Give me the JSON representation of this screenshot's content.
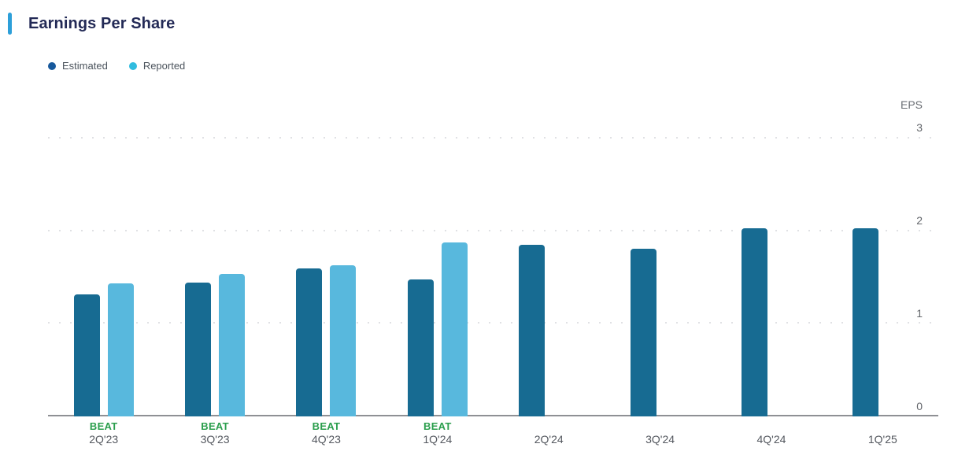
{
  "chart_data": {
    "type": "bar",
    "title": "Earnings Per Share",
    "ylabel": "EPS",
    "ylim": [
      0,
      3
    ],
    "yticks": [
      0,
      1,
      2,
      3
    ],
    "grid": "dotted horizontal gridlines at 1, 2, 3; solid baseline at 0",
    "legend_position": "top-left",
    "categories": [
      "2Q'23",
      "3Q'23",
      "4Q'23",
      "1Q'24",
      "2Q'24",
      "3Q'24",
      "4Q'24",
      "1Q'25"
    ],
    "series": [
      {
        "name": "Estimated",
        "color": "#176b92",
        "legend_dot_color": "#17599c",
        "values": [
          1.31,
          1.44,
          1.59,
          1.47,
          1.84,
          1.8,
          2.02,
          2.02
        ]
      },
      {
        "name": "Reported",
        "color": "#58b8dd",
        "legend_dot_color": "#30bcdf",
        "values": [
          1.43,
          1.53,
          1.62,
          1.87,
          null,
          null,
          null,
          null
        ]
      }
    ],
    "beat_label": "BEAT",
    "beat_flags": [
      true,
      true,
      true,
      true,
      false,
      false,
      false,
      false
    ]
  },
  "colors": {
    "title_text": "#232a56",
    "accent_bar": "#2d9fd9",
    "legend_text": "#4b535c",
    "tick_text": "#64676c",
    "axis_title_text": "#6a6e74",
    "x_label_text": "#54585f",
    "beat_text": "#2b9e4d",
    "axis_line": "#8e9094",
    "grid_dot": "#e0e1e4"
  }
}
